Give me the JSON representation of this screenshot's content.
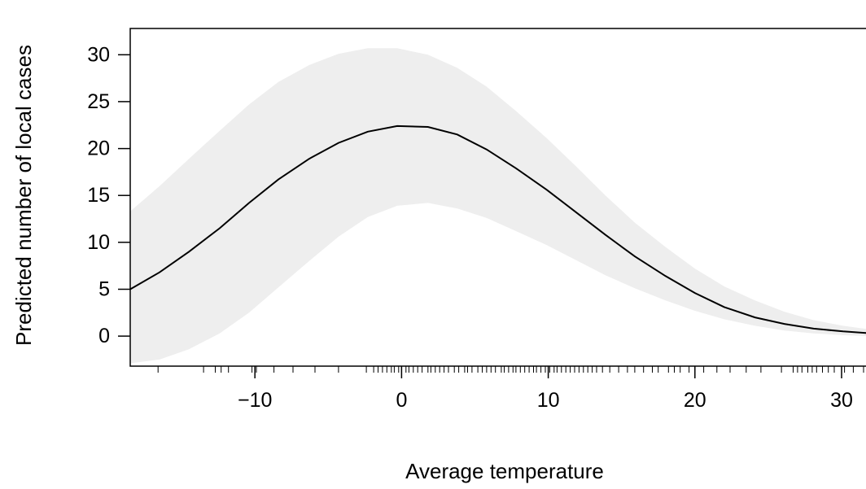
{
  "chart_data": {
    "type": "line",
    "title": "",
    "xlabel": "Average temperature",
    "ylabel": "Predicted number of local cases",
    "xlim": [
      -18.5,
      32
    ],
    "ylim": [
      -3.2,
      32.8
    ],
    "x_ticks": [
      -10,
      0,
      10,
      20,
      30
    ],
    "x_tick_labels": [
      "−10",
      "0",
      "10",
      "20",
      "30"
    ],
    "y_ticks": [
      0,
      5,
      10,
      15,
      20,
      25,
      30
    ],
    "y_tick_labels": [
      "0",
      "5",
      "10",
      "15",
      "20",
      "25",
      "30"
    ],
    "grid": false,
    "series": [
      {
        "x": [
          -18.5,
          -16.5,
          -14.5,
          -12.4,
          -10.4,
          -8.4,
          -6.3,
          -4.3,
          -2.3,
          -0.3,
          1.8,
          3.8,
          5.8,
          7.8,
          9.9,
          11.9,
          13.9,
          15.9,
          18.0,
          20.0,
          22.0,
          24.1,
          26.1,
          28.1,
          30.1,
          32.0
        ],
        "y": [
          5.0,
          6.8,
          9.0,
          11.5,
          14.2,
          16.7,
          18.9,
          20.6,
          21.8,
          22.4,
          22.3,
          21.5,
          19.9,
          17.9,
          15.6,
          13.2,
          10.8,
          8.5,
          6.4,
          4.6,
          3.1,
          2.0,
          1.3,
          0.8,
          0.5,
          0.3
        ],
        "color": "#000000"
      }
    ],
    "confidence_band": {
      "x": [
        -18.5,
        -16.5,
        -14.5,
        -12.4,
        -10.4,
        -8.4,
        -6.3,
        -4.3,
        -2.3,
        -0.3,
        1.8,
        3.8,
        5.8,
        7.8,
        9.9,
        11.9,
        13.9,
        15.9,
        18.0,
        20.0,
        22.0,
        24.1,
        26.1,
        28.1,
        30.1,
        32.0
      ],
      "lower": [
        -2.9,
        -2.5,
        -1.4,
        0.3,
        2.5,
        5.2,
        8.0,
        10.6,
        12.7,
        13.9,
        14.2,
        13.6,
        12.6,
        11.2,
        9.7,
        8.1,
        6.5,
        5.1,
        3.8,
        2.7,
        1.8,
        1.1,
        0.6,
        0.3,
        0.1,
        0.0
      ],
      "upper": [
        13.3,
        16.0,
        18.9,
        21.9,
        24.7,
        27.1,
        28.9,
        30.1,
        30.7,
        30.7,
        30.0,
        28.6,
        26.6,
        24.0,
        21.1,
        18.1,
        15.0,
        12.1,
        9.5,
        7.2,
        5.3,
        3.8,
        2.6,
        1.7,
        1.1,
        0.7
      ],
      "color": "#eeeeee"
    },
    "rug": [
      -16.6,
      -13.5,
      -12.7,
      -12.3,
      -11.8,
      -10.2,
      -9.9,
      -8.7,
      -7.4,
      -5.9,
      -4.3,
      -2.4,
      -1.9,
      -1.6,
      -1.3,
      -1.0,
      -0.7,
      -0.5,
      -0.2,
      0.0,
      0.3,
      0.5,
      0.8,
      1.1,
      1.4,
      1.8,
      2.0,
      2.3,
      2.6,
      2.9,
      3.2,
      3.6,
      3.9,
      4.3,
      4.5,
      4.8,
      5.2,
      5.5,
      5.8,
      6.1,
      6.4,
      6.8,
      7.0,
      7.3,
      7.6,
      7.8,
      8.1,
      8.4,
      8.7,
      9.0,
      9.2,
      9.5,
      9.8,
      10.1,
      10.4,
      10.6,
      10.9,
      11.2,
      11.5,
      11.8,
      12.1,
      12.4,
      12.7,
      13.0,
      13.3,
      13.7,
      14.2,
      14.8,
      15.4,
      15.9,
      16.5,
      17.1,
      17.5,
      18.2,
      18.6,
      19.0,
      19.6,
      20.6,
      21.5,
      22.4,
      23.5,
      24.5,
      25.9,
      26.7,
      27.0,
      27.3,
      27.7,
      28.0,
      28.3,
      28.7,
      29.1,
      29.5,
      30.2,
      30.8,
      31.5
    ]
  }
}
